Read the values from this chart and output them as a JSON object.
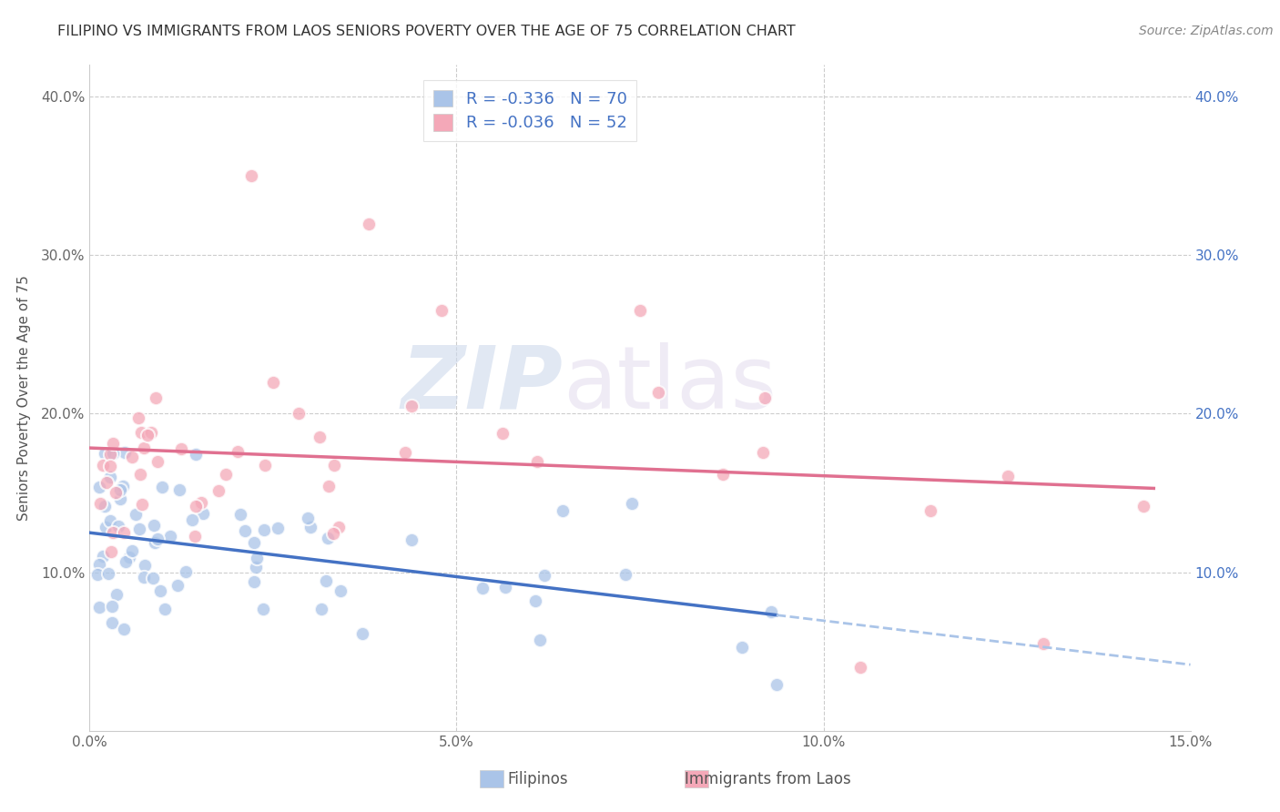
{
  "title": "FILIPINO VS IMMIGRANTS FROM LAOS SENIORS POVERTY OVER THE AGE OF 75 CORRELATION CHART",
  "source": "Source: ZipAtlas.com",
  "ylabel": "Seniors Poverty Over the Age of 75",
  "xlim": [
    0.0,
    0.15
  ],
  "ylim": [
    0.0,
    0.42
  ],
  "filipino_color": "#aac4e8",
  "laos_color": "#f4a8b8",
  "filipino_trend_color": "#4472c4",
  "laos_trend_color": "#e07090",
  "laos_trend_dash_color": "#aac4e8",
  "R_filipino": -0.336,
  "N_filipino": 70,
  "R_laos": -0.036,
  "N_laos": 52,
  "watermark_zip": "ZIP",
  "watermark_atlas": "atlas",
  "background_color": "#ffffff",
  "grid_color": "#cccccc",
  "legend_text_color_R": "#e07090",
  "legend_text_color_N": "#4472c4",
  "title_color": "#333333",
  "axis_label_color": "#555555",
  "right_axis_color": "#4472c4"
}
